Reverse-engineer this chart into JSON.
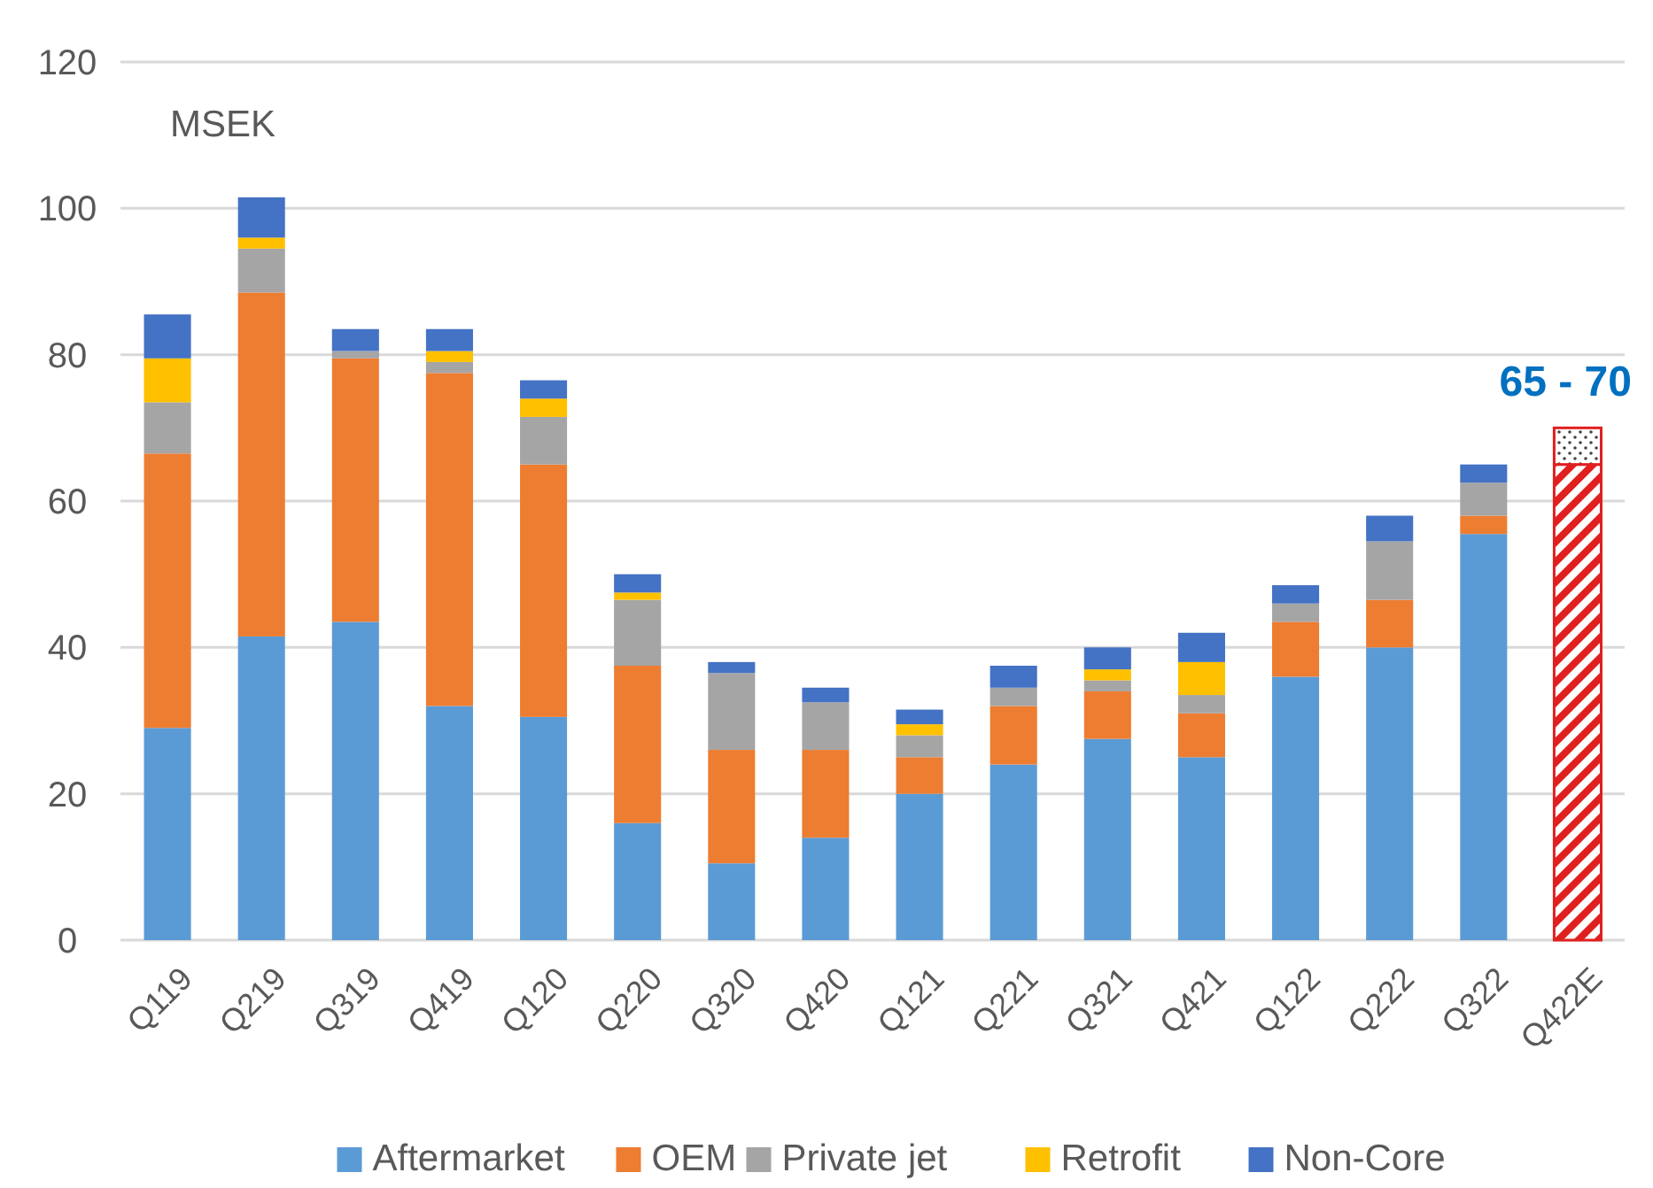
{
  "chart_data": {
    "type": "bar",
    "stacked": true,
    "ylabel": "MSEK",
    "categories": [
      "Q119",
      "Q219",
      "Q319",
      "Q419",
      "Q120",
      "Q220",
      "Q320",
      "Q420",
      "Q121",
      "Q221",
      "Q321",
      "Q421",
      "Q122",
      "Q222",
      "Q322",
      "Q422E"
    ],
    "series": [
      {
        "name": "Aftermarket",
        "color": "#5b9bd5",
        "values": [
          29,
          41.5,
          43.5,
          32,
          30.5,
          16,
          10.5,
          14,
          20,
          24,
          27.5,
          25,
          36,
          40,
          55.5,
          null
        ]
      },
      {
        "name": "OEM",
        "color": "#ed7d31",
        "values": [
          37.5,
          47,
          36,
          45.5,
          34.5,
          21.5,
          15.5,
          12,
          5,
          8,
          6.5,
          6,
          7.5,
          6.5,
          2.5,
          null
        ]
      },
      {
        "name": "Private jet",
        "color": "#a5a5a5",
        "values": [
          7,
          6,
          1,
          1.5,
          6.5,
          9,
          10.5,
          6.5,
          3,
          2.5,
          1.5,
          2.5,
          2.5,
          8,
          4.5,
          null
        ]
      },
      {
        "name": "Retrofit",
        "color": "#ffc000",
        "values": [
          6,
          1.5,
          0,
          1.5,
          2.5,
          1,
          0,
          0,
          1.5,
          0,
          1.5,
          4.5,
          0,
          0,
          0,
          null
        ]
      },
      {
        "name": "Non-Core",
        "color": "#4472c4",
        "values": [
          6,
          5.5,
          3,
          3,
          2.5,
          2.5,
          1.5,
          2,
          2,
          3,
          3,
          4,
          2.5,
          3.5,
          2.5,
          null
        ]
      },
      {
        "color": "#e0201f",
        "values": [
          null,
          null,
          null,
          null,
          null,
          null,
          null,
          null,
          null,
          null,
          null,
          null,
          null,
          null,
          null,
          65
        ]
      },
      {
        "color": "#e0201f",
        "values": [
          null,
          null,
          null,
          null,
          null,
          null,
          null,
          null,
          null,
          null,
          null,
          null,
          null,
          null,
          null,
          5
        ]
      }
    ],
    "ylim": [
      0,
      120
    ],
    "yticks": [
      0,
      20,
      40,
      60,
      80,
      100,
      120
    ],
    "grid": "y",
    "legend": "bottom",
    "annotations": [
      {
        "text": "65 - 70",
        "x": "Q422E",
        "y": 70
      }
    ]
  }
}
